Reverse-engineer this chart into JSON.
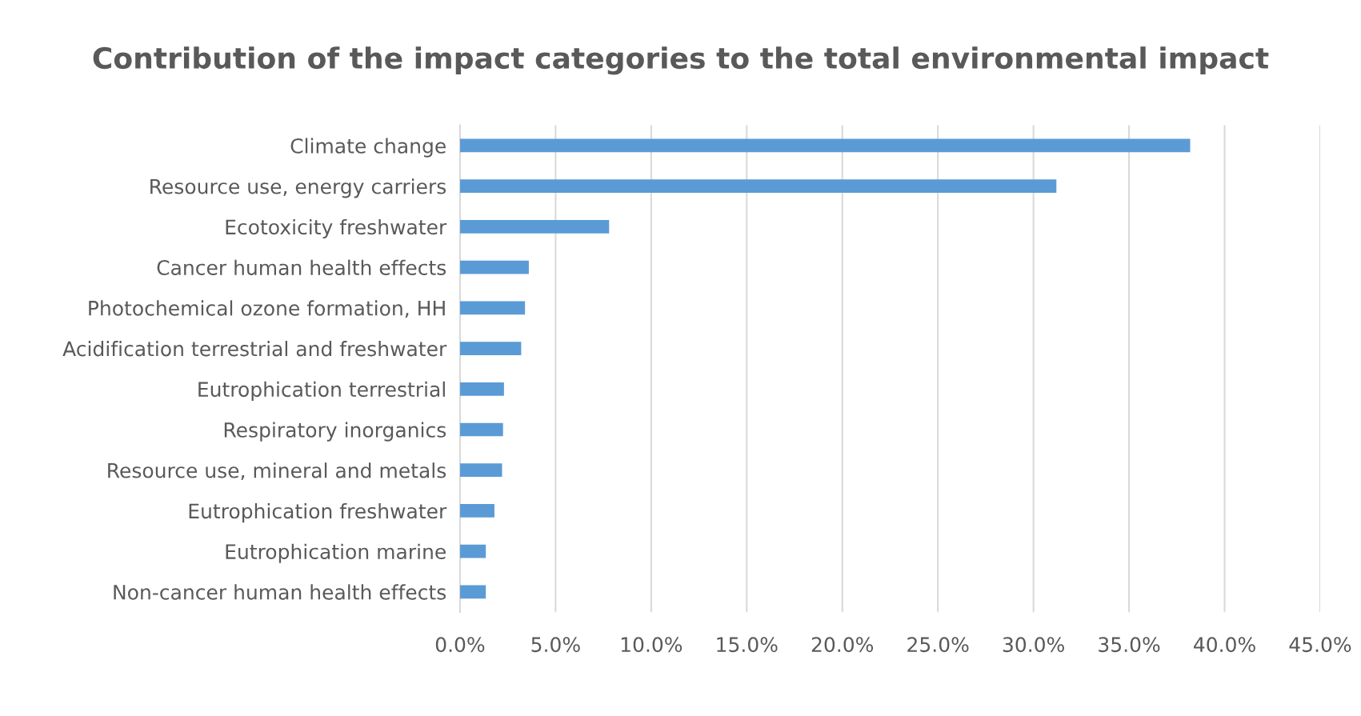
{
  "chart_data": {
    "type": "bar",
    "orientation": "horizontal",
    "title": "Contribution of the impact categories to the total environmental impact",
    "categories": [
      "Climate change",
      "Resource use, energy carriers",
      "Ecotoxicity freshwater",
      "Cancer human health effects",
      "Photochemical ozone formation, HH",
      "Acidification terrestrial and freshwater",
      "Eutrophication terrestrial",
      "Respiratory inorganics",
      "Resource use, mineral and metals",
      "Eutrophication freshwater",
      "Eutrophication marine",
      "Non-cancer human health effects"
    ],
    "values": [
      38.2,
      31.2,
      7.8,
      3.6,
      3.4,
      3.2,
      2.3,
      2.25,
      2.2,
      1.8,
      1.35,
      1.35
    ],
    "color": "#5b9bd5",
    "xlim": [
      0,
      45
    ],
    "xticks": [
      {
        "value": 0,
        "label": "0.0%"
      },
      {
        "value": 5,
        "label": "5.0%"
      },
      {
        "value": 10,
        "label": "10.0%"
      },
      {
        "value": 15,
        "label": "15.0%"
      },
      {
        "value": 20,
        "label": "20.0%"
      },
      {
        "value": 25,
        "label": "25.0%"
      },
      {
        "value": 30,
        "label": "30.0%"
      },
      {
        "value": 35,
        "label": "35.0%"
      },
      {
        "value": 40,
        "label": "40.0%"
      },
      {
        "value": 45,
        "label": "45.0%"
      }
    ],
    "grid": "x"
  }
}
